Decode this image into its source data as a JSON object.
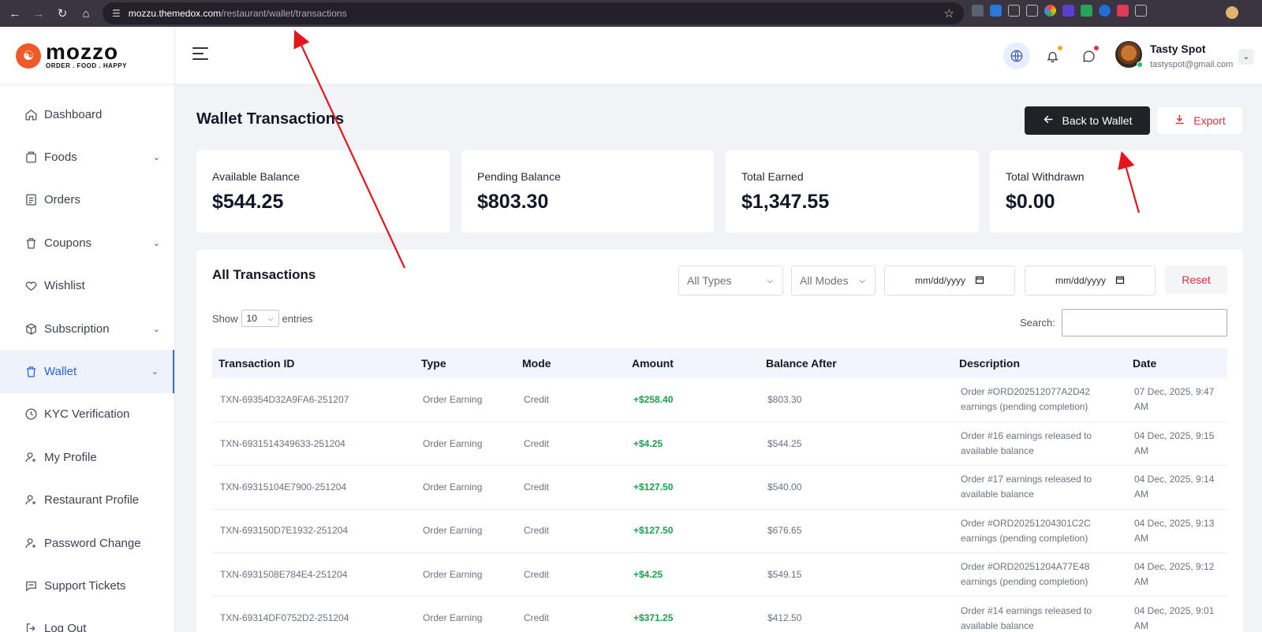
{
  "browser": {
    "url_host": "mozzu.themedox.com",
    "url_path": "/restaurant/wallet/transactions"
  },
  "brand": {
    "name": "mozzo",
    "tagline": "ORDER . FOOD . HAPPY"
  },
  "sidebar": {
    "items": [
      {
        "label": "Dashboard",
        "icon": "home-icon",
        "has_submenu": false
      },
      {
        "label": "Foods",
        "icon": "box-icon",
        "has_submenu": true
      },
      {
        "label": "Orders",
        "icon": "clipboard-icon",
        "has_submenu": false
      },
      {
        "label": "Coupons",
        "icon": "trash-tag-icon",
        "has_submenu": true
      },
      {
        "label": "Wishlist",
        "icon": "heart-icon",
        "has_submenu": false
      },
      {
        "label": "Subscription",
        "icon": "package-icon",
        "has_submenu": true
      },
      {
        "label": "Wallet",
        "icon": "wallet-icon",
        "has_submenu": true,
        "active": true
      },
      {
        "label": "KYC Verification",
        "icon": "clock-icon",
        "has_submenu": false
      },
      {
        "label": "My Profile",
        "icon": "user-gear-icon",
        "has_submenu": false
      },
      {
        "label": "Restaurant Profile",
        "icon": "user-gear-icon",
        "has_submenu": false
      },
      {
        "label": "Password Change",
        "icon": "user-gear-icon",
        "has_submenu": false
      },
      {
        "label": "Support Tickets",
        "icon": "chat-icon",
        "has_submenu": false
      },
      {
        "label": "Log Out",
        "icon": "logout-icon",
        "has_submenu": false
      }
    ]
  },
  "user": {
    "name": "Tasty Spot",
    "email": "tastyspot@gmail.com"
  },
  "page": {
    "title": "Wallet Transactions",
    "back_button": "Back to Wallet",
    "export_button": "Export"
  },
  "stats": [
    {
      "label": "Available Balance",
      "value": "$544.25"
    },
    {
      "label": "Pending Balance",
      "value": "$803.30"
    },
    {
      "label": "Total Earned",
      "value": "$1,347.55"
    },
    {
      "label": "Total Withdrawn",
      "value": "$0.00"
    }
  ],
  "transactions": {
    "title": "All Transactions",
    "filters": {
      "type": "All Types",
      "mode": "All Modes",
      "date_from_placeholder": "mm/dd/yyyy",
      "date_to_placeholder": "mm/dd/yyyy",
      "reset": "Reset"
    },
    "show_label": "Show",
    "entries_value": "10",
    "entries_label": "entries",
    "search_label": "Search:",
    "columns": [
      "Transaction ID",
      "Type",
      "Mode",
      "Amount",
      "Balance After",
      "Description",
      "Date"
    ],
    "rows": [
      {
        "id": "TXN-69354D32A9FA6-251207",
        "type": "Order Earning",
        "mode": "Credit",
        "amount": "+$258.40",
        "balance": "$803.30",
        "description": "Order #ORD202512077A2D42 earnings (pending completion)",
        "date": "07 Dec, 2025, 9:47 AM"
      },
      {
        "id": "TXN-6931514349633-251204",
        "type": "Order Earning",
        "mode": "Credit",
        "amount": "+$4.25",
        "balance": "$544.25",
        "description": "Order #16 earnings released to available balance",
        "date": "04 Dec, 2025, 9:15 AM"
      },
      {
        "id": "TXN-69315104E7900-251204",
        "type": "Order Earning",
        "mode": "Credit",
        "amount": "+$127.50",
        "balance": "$540.00",
        "description": "Order #17 earnings released to available balance",
        "date": "04 Dec, 2025, 9:14 AM"
      },
      {
        "id": "TXN-693150D7E1932-251204",
        "type": "Order Earning",
        "mode": "Credit",
        "amount": "+$127.50",
        "balance": "$676.65",
        "description": "Order #ORD20251204301C2C earnings (pending completion)",
        "date": "04 Dec, 2025, 9:13 AM"
      },
      {
        "id": "TXN-6931508E784E4-251204",
        "type": "Order Earning",
        "mode": "Credit",
        "amount": "+$4.25",
        "balance": "$549.15",
        "description": "Order #ORD20251204A77E48 earnings (pending completion)",
        "date": "04 Dec, 2025, 9:12 AM"
      },
      {
        "id": "TXN-69314DF0752D2-251204",
        "type": "Order Earning",
        "mode": "Credit",
        "amount": "+$371.25",
        "balance": "$412.50",
        "description": "Order #14 earnings released to available balance",
        "date": "04 Dec, 2025, 9:01 AM"
      }
    ]
  },
  "colors": {
    "accent_blue": "#2563eb",
    "brand_orange": "#f05a28",
    "danger_red": "#e0313d",
    "success_green": "#16a34a",
    "annotation_red": "#e8141b"
  }
}
